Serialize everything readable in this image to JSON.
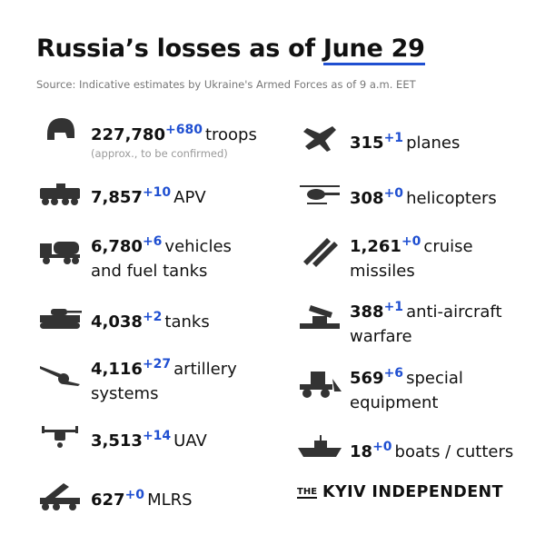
{
  "header": {
    "title_start": "Russia’s losses as of",
    "title_date": "June 29",
    "source": "Source: Indicative estimates by Ukraine's Armed Forces as of 9 a.m. EET"
  },
  "left": [
    {
      "count": "227,780",
      "delta": "+680",
      "label_lines": [
        "troops"
      ],
      "note": "(approx., to be confirmed)"
    },
    {
      "count": "7,857",
      "delta": "+10",
      "label_lines": [
        "APV"
      ]
    },
    {
      "count": "6,780",
      "delta": "+6",
      "label_lines": [
        "vehicles",
        "and fuel tanks"
      ]
    },
    {
      "count": "4,038",
      "delta": "+2",
      "label_lines": [
        "tanks"
      ]
    },
    {
      "count": "4,116",
      "delta": "+27",
      "label_lines": [
        "artillery",
        "systems"
      ]
    },
    {
      "count": "3,513",
      "delta": "+14",
      "label_lines": [
        "UAV"
      ]
    },
    {
      "count": "627",
      "delta": "+0",
      "label_lines": [
        "MLRS"
      ]
    }
  ],
  "right": [
    {
      "count": "315",
      "delta": "+1",
      "label_lines": [
        "planes"
      ]
    },
    {
      "count": "308",
      "delta": "+0",
      "label_lines": [
        "helicopters"
      ]
    },
    {
      "count": "1,261",
      "delta": "+0",
      "label_lines": [
        "cruise",
        "missiles"
      ]
    },
    {
      "count": "388",
      "delta": "+1",
      "label_lines": [
        "anti-aircraft",
        "warfare"
      ]
    },
    {
      "count": "569",
      "delta": "+6",
      "label_lines": [
        "special",
        "equipment"
      ]
    },
    {
      "count": "18",
      "delta": "+0",
      "label_lines": [
        "boats / cutters"
      ]
    }
  ],
  "logo": {
    "the": "THE",
    "name": "KYIV INDEPENDENT"
  }
}
